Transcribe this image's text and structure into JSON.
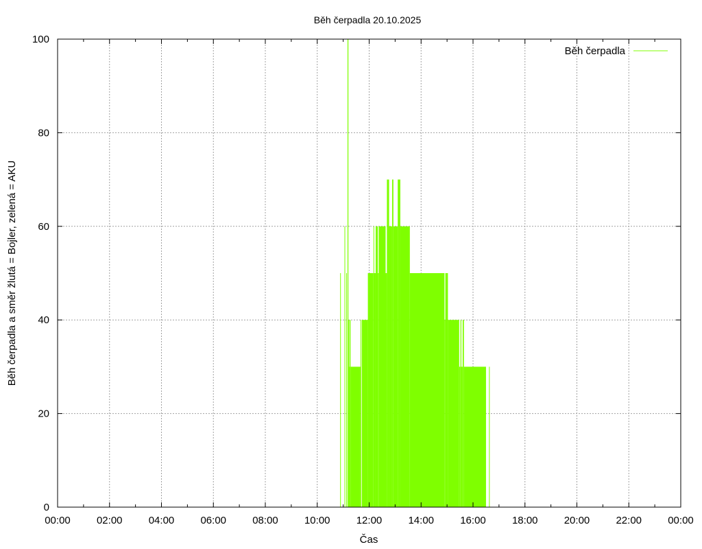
{
  "chart_data": {
    "type": "bar",
    "title": "Běh čerpadla 20.10.2025",
    "xlabel": "Čas",
    "ylabel": "Běh čerpadla a směr žlutá = Bojler, zelená = AKU",
    "xlim": [
      "00:00",
      "24:00"
    ],
    "ylim": [
      0,
      100
    ],
    "x_ticks": [
      "00:00",
      "02:00",
      "04:00",
      "06:00",
      "08:00",
      "10:00",
      "12:00",
      "14:00",
      "16:00",
      "18:00",
      "20:00",
      "22:00",
      "00:00"
    ],
    "y_ticks": [
      0,
      20,
      40,
      60,
      80,
      100
    ],
    "grid": true,
    "legend_position": "top-right",
    "series": [
      {
        "name": "Běh čerpadla",
        "color": "#7fff00",
        "bars": [
          {
            "start": "10:53",
            "end": "10:54",
            "value": 50
          },
          {
            "start": "11:03",
            "end": "11:04",
            "value": 60
          },
          {
            "start": "11:07",
            "end": "11:08",
            "value": 50
          },
          {
            "start": "11:10",
            "end": "11:12",
            "value": 100
          },
          {
            "start": "11:12",
            "end": "11:14",
            "value": 40
          },
          {
            "start": "11:14",
            "end": "11:15",
            "value": 30
          },
          {
            "start": "11:15",
            "end": "11:17",
            "value": 40
          },
          {
            "start": "11:17",
            "end": "11:40",
            "value": 30
          },
          {
            "start": "11:40",
            "end": "11:41",
            "value": 40
          },
          {
            "start": "11:43",
            "end": "11:44",
            "value": 40
          },
          {
            "start": "11:44",
            "end": "11:57",
            "value": 40
          },
          {
            "start": "11:57",
            "end": "12:10",
            "value": 50
          },
          {
            "start": "12:10",
            "end": "12:11",
            "value": 60
          },
          {
            "start": "12:11",
            "end": "12:15",
            "value": 50
          },
          {
            "start": "12:15",
            "end": "12:20",
            "value": 60
          },
          {
            "start": "12:20",
            "end": "12:22",
            "value": 50
          },
          {
            "start": "12:22",
            "end": "12:38",
            "value": 60
          },
          {
            "start": "12:38",
            "end": "12:41",
            "value": 50
          },
          {
            "start": "12:41",
            "end": "12:46",
            "value": 70
          },
          {
            "start": "12:46",
            "end": "12:53",
            "value": 60
          },
          {
            "start": "12:53",
            "end": "12:56",
            "value": 70
          },
          {
            "start": "12:56",
            "end": "13:06",
            "value": 60
          },
          {
            "start": "13:06",
            "end": "13:12",
            "value": 70
          },
          {
            "start": "13:12",
            "end": "13:34",
            "value": 60
          },
          {
            "start": "13:34",
            "end": "14:54",
            "value": 50
          },
          {
            "start": "14:54",
            "end": "14:56",
            "value": 40
          },
          {
            "start": "14:56",
            "end": "15:02",
            "value": 50
          },
          {
            "start": "15:02",
            "end": "15:28",
            "value": 40
          },
          {
            "start": "15:28",
            "end": "15:31",
            "value": 30
          },
          {
            "start": "15:31",
            "end": "15:33",
            "value": 40
          },
          {
            "start": "15:33",
            "end": "15:36",
            "value": 30
          },
          {
            "start": "15:36",
            "end": "15:39",
            "value": 40
          },
          {
            "start": "15:39",
            "end": "16:30",
            "value": 30
          },
          {
            "start": "16:37",
            "end": "16:38",
            "value": 30
          }
        ]
      }
    ]
  }
}
